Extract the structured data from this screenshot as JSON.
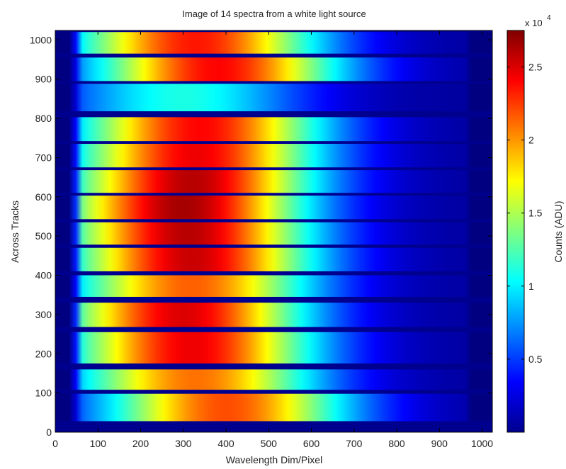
{
  "chart_data": {
    "type": "heatmap",
    "title": "Image of 14 spectra from a white light source",
    "xlabel": "Wavelength Dim/Pixel",
    "ylabel": "Across Tracks",
    "xlim": [
      0,
      1024
    ],
    "ylim": [
      0,
      1024
    ],
    "x_ticks": [
      0,
      100,
      200,
      300,
      400,
      500,
      600,
      700,
      800,
      900,
      1000
    ],
    "y_ticks": [
      0,
      100,
      200,
      300,
      400,
      500,
      600,
      700,
      800,
      900,
      1000
    ],
    "colorbar": {
      "label": "Counts (ADU)",
      "scale_label": "x 10",
      "scale_exponent": "4",
      "range": [
        0,
        27500
      ],
      "ticks": [
        0.5,
        1,
        1.5,
        2,
        2.5
      ],
      "tick_labels": [
        "0.5",
        "1",
        "1.5",
        "2",
        "2.5"
      ],
      "colormap": "jet"
    },
    "spectra": [
      {
        "y_min": 28,
        "y_max": 98,
        "peak_x": 400,
        "peak_counts": 22000
      },
      {
        "y_min": 108,
        "y_max": 160,
        "peak_x": 330,
        "peak_counts": 21000
      },
      {
        "y_min": 175,
        "y_max": 255,
        "peak_x": 320,
        "peak_counts": 24500
      },
      {
        "y_min": 268,
        "y_max": 330,
        "peak_x": 300,
        "peak_counts": 25000
      },
      {
        "y_min": 345,
        "y_max": 400,
        "peak_x": 320,
        "peak_counts": 21500
      },
      {
        "y_min": 410,
        "y_max": 470,
        "peak_x": 320,
        "peak_counts": 25500
      },
      {
        "y_min": 478,
        "y_max": 535,
        "peak_x": 310,
        "peak_counts": 26000
      },
      {
        "y_min": 543,
        "y_max": 603,
        "peak_x": 300,
        "peak_counts": 26500
      },
      {
        "y_min": 610,
        "y_max": 668,
        "peak_x": 320,
        "peak_counts": 26000
      },
      {
        "y_min": 675,
        "y_max": 735,
        "peak_x": 330,
        "peak_counts": 24500
      },
      {
        "y_min": 742,
        "y_max": 803,
        "peak_x": 340,
        "peak_counts": 24000
      },
      {
        "y_min": 818,
        "y_max": 888,
        "peak_x": 300,
        "peak_counts": 11000
      },
      {
        "y_min": 895,
        "y_max": 955,
        "peak_x": 380,
        "peak_counts": 24000
      },
      {
        "y_min": 965,
        "y_max": 1020,
        "peak_x": 330,
        "peak_counts": 23500
      }
    ]
  }
}
